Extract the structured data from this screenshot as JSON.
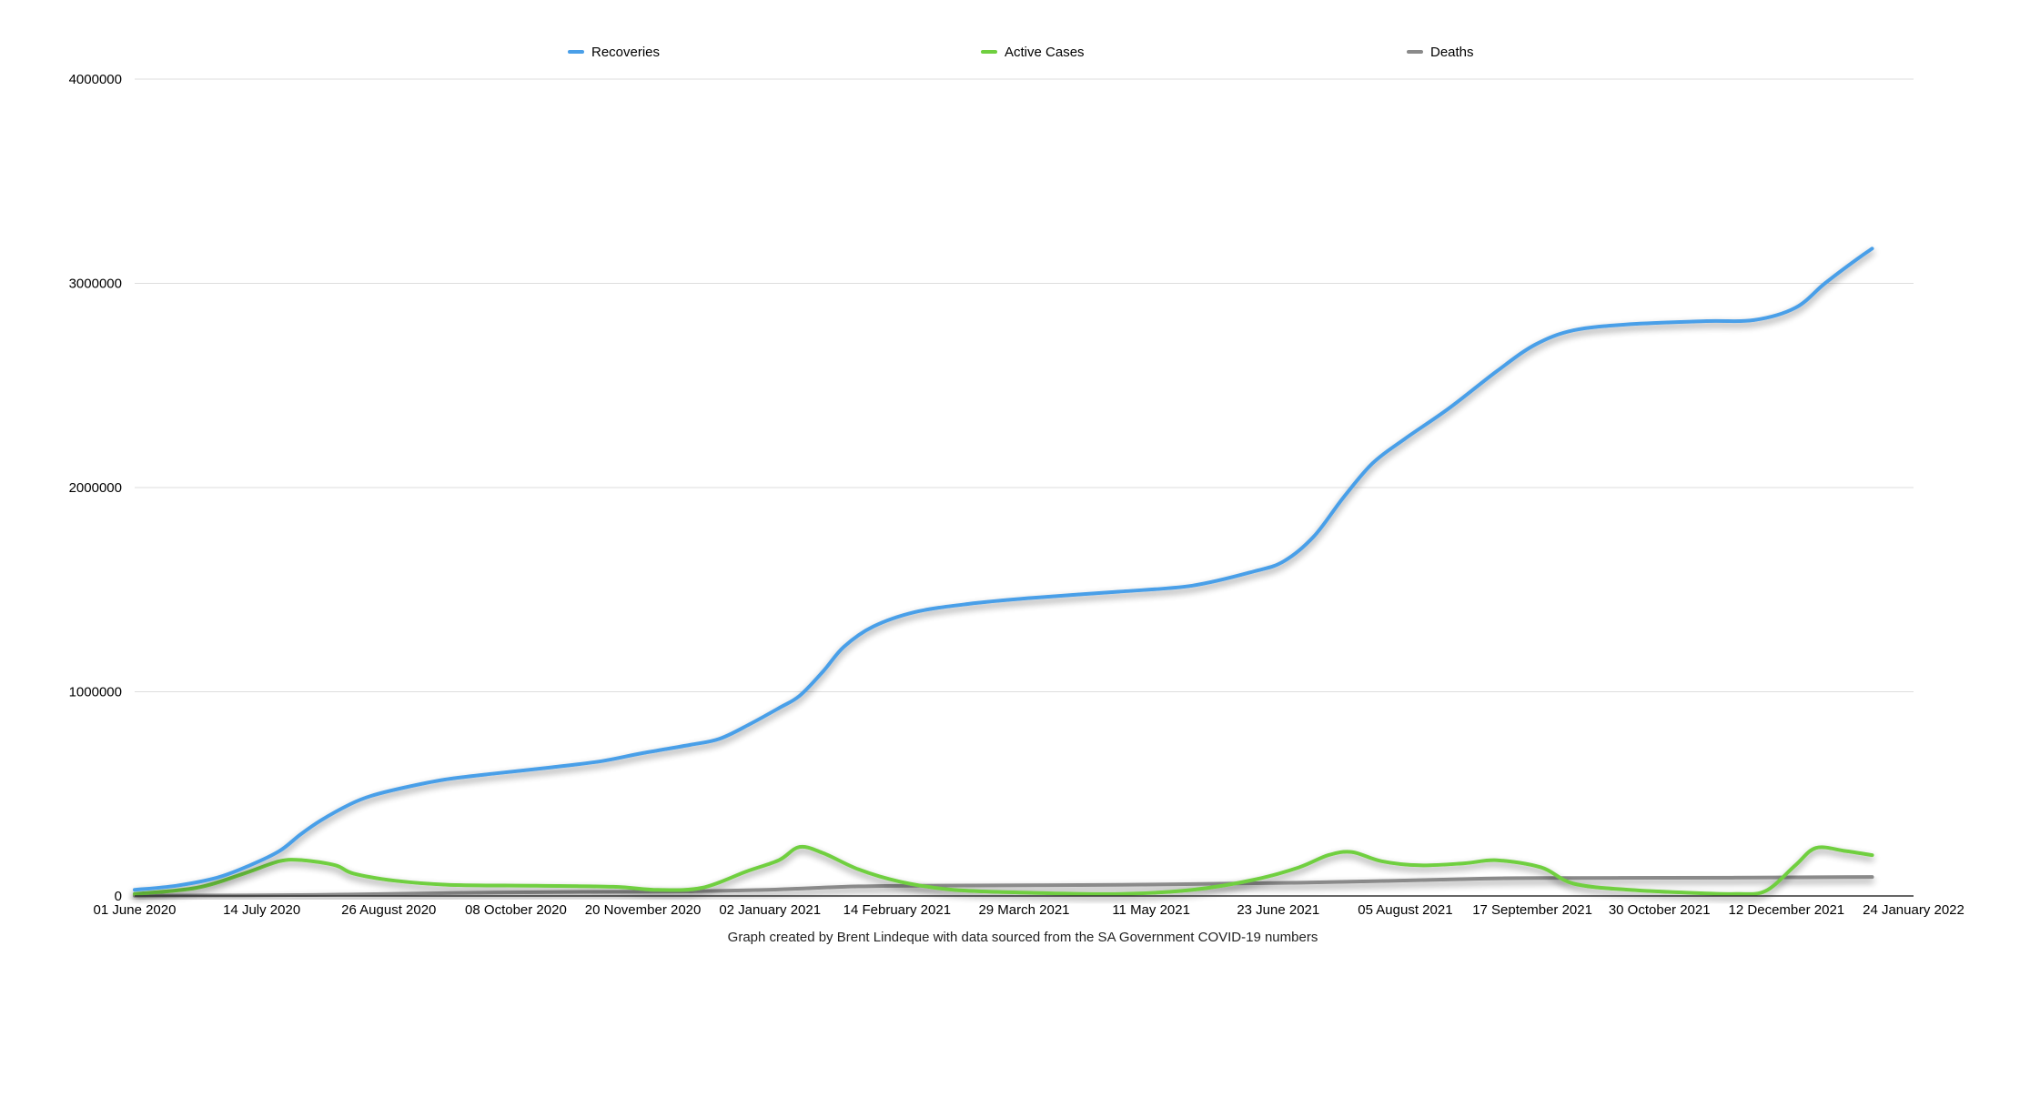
{
  "chart_data": {
    "type": "line",
    "caption": "Graph created by Brent Lindeque with data sourced from the SA Government COVID-19 numbers",
    "x_tick_labels": [
      "01 June 2020",
      "14 July 2020",
      "26 August 2020",
      "08 October 2020",
      "20 November 2020",
      "02 January 2021",
      "14 February 2021",
      "29 March 2021",
      "11 May 2021",
      "23 June 2021",
      "05 August 2021",
      "17 September 2021",
      "30 October 2021",
      "12 December 2021",
      "24 January 2022"
    ],
    "x_range": [
      "2020-06-01",
      "2022-01-24"
    ],
    "ylim": [
      0,
      4000000
    ],
    "y_ticks": [
      0,
      1000000,
      2000000,
      3000000,
      4000000
    ],
    "y_tick_labels": [
      "0",
      "1000000",
      "2000000",
      "3000000",
      "4000000"
    ],
    "grid": true,
    "legend_position": "top",
    "series": [
      {
        "name": "Recoveries",
        "color": "#4a9fe8",
        "points": [
          [
            "2020-06-01",
            30000
          ],
          [
            "2020-06-15",
            50000
          ],
          [
            "2020-06-29",
            90000
          ],
          [
            "2020-07-10",
            150000
          ],
          [
            "2020-07-20",
            220000
          ],
          [
            "2020-07-27",
            300000
          ],
          [
            "2020-08-03",
            370000
          ],
          [
            "2020-08-13",
            450000
          ],
          [
            "2020-08-20",
            490000
          ],
          [
            "2020-08-31",
            530000
          ],
          [
            "2020-09-14",
            570000
          ],
          [
            "2020-10-01",
            600000
          ],
          [
            "2020-10-20",
            630000
          ],
          [
            "2020-11-06",
            660000
          ],
          [
            "2020-11-20",
            700000
          ],
          [
            "2020-12-06",
            740000
          ],
          [
            "2020-12-16",
            770000
          ],
          [
            "2020-12-26",
            840000
          ],
          [
            "2021-01-05",
            920000
          ],
          [
            "2021-01-12",
            980000
          ],
          [
            "2021-01-20",
            1100000
          ],
          [
            "2021-01-27",
            1220000
          ],
          [
            "2021-02-06",
            1320000
          ],
          [
            "2021-02-20",
            1390000
          ],
          [
            "2021-03-10",
            1430000
          ],
          [
            "2021-04-01",
            1460000
          ],
          [
            "2021-04-30",
            1490000
          ],
          [
            "2021-05-25",
            1520000
          ],
          [
            "2021-06-15",
            1590000
          ],
          [
            "2021-06-25",
            1640000
          ],
          [
            "2021-07-05",
            1760000
          ],
          [
            "2021-07-15",
            1950000
          ],
          [
            "2021-07-25",
            2120000
          ],
          [
            "2021-08-05",
            2240000
          ],
          [
            "2021-08-20",
            2390000
          ],
          [
            "2021-09-05",
            2570000
          ],
          [
            "2021-09-18",
            2700000
          ],
          [
            "2021-10-01",
            2770000
          ],
          [
            "2021-10-20",
            2800000
          ],
          [
            "2021-11-15",
            2815000
          ],
          [
            "2021-12-01",
            2820000
          ],
          [
            "2021-12-15",
            2880000
          ],
          [
            "2021-12-25",
            3000000
          ],
          [
            "2022-01-05",
            3120000
          ],
          [
            "2022-01-10",
            3170000
          ]
        ]
      },
      {
        "name": "Active Cases",
        "color": "#6fcf3f",
        "points": [
          [
            "2020-06-01",
            10000
          ],
          [
            "2020-06-22",
            40000
          ],
          [
            "2020-07-08",
            110000
          ],
          [
            "2020-07-20",
            170000
          ],
          [
            "2020-07-28",
            175000
          ],
          [
            "2020-08-08",
            150000
          ],
          [
            "2020-08-14",
            110000
          ],
          [
            "2020-08-28",
            75000
          ],
          [
            "2020-09-15",
            55000
          ],
          [
            "2020-10-15",
            50000
          ],
          [
            "2020-11-10",
            45000
          ],
          [
            "2020-11-25",
            30000
          ],
          [
            "2020-12-10",
            40000
          ],
          [
            "2020-12-25",
            120000
          ],
          [
            "2021-01-05",
            175000
          ],
          [
            "2021-01-12",
            240000
          ],
          [
            "2021-01-20",
            210000
          ],
          [
            "2021-02-01",
            130000
          ],
          [
            "2021-02-15",
            70000
          ],
          [
            "2021-03-05",
            30000
          ],
          [
            "2021-04-01",
            15000
          ],
          [
            "2021-05-01",
            10000
          ],
          [
            "2021-05-25",
            30000
          ],
          [
            "2021-06-15",
            80000
          ],
          [
            "2021-06-30",
            140000
          ],
          [
            "2021-07-10",
            200000
          ],
          [
            "2021-07-18",
            215000
          ],
          [
            "2021-07-28",
            170000
          ],
          [
            "2021-08-10",
            150000
          ],
          [
            "2021-08-25",
            160000
          ],
          [
            "2021-09-05",
            175000
          ],
          [
            "2021-09-20",
            140000
          ],
          [
            "2021-10-01",
            60000
          ],
          [
            "2021-10-20",
            30000
          ],
          [
            "2021-11-10",
            15000
          ],
          [
            "2021-11-25",
            10000
          ],
          [
            "2021-12-05",
            25000
          ],
          [
            "2021-12-15",
            150000
          ],
          [
            "2021-12-22",
            235000
          ],
          [
            "2022-01-01",
            220000
          ],
          [
            "2022-01-10",
            200000
          ]
        ]
      },
      {
        "name": "Deaths",
        "color": "#8a8a8a",
        "points": [
          [
            "2020-06-01",
            1000
          ],
          [
            "2020-08-01",
            5000
          ],
          [
            "2020-10-01",
            17000
          ],
          [
            "2020-12-01",
            22000
          ],
          [
            "2021-01-01",
            30000
          ],
          [
            "2021-02-01",
            47000
          ],
          [
            "2021-03-01",
            51000
          ],
          [
            "2021-05-01",
            55000
          ],
          [
            "2021-07-01",
            65000
          ],
          [
            "2021-09-01",
            85000
          ],
          [
            "2021-10-01",
            88000
          ],
          [
            "2021-12-01",
            90000
          ],
          [
            "2022-01-10",
            93000
          ]
        ]
      }
    ]
  }
}
